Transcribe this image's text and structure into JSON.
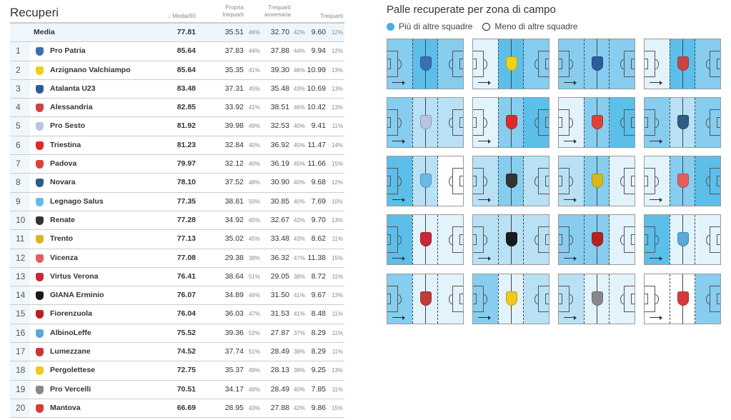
{
  "table": {
    "title": "Recuperi",
    "headers": {
      "media90": "↓ Media/90",
      "propria": "Propria trequarti",
      "avversaria": "Trequarti avversaria",
      "trequarti": "Trequarti"
    },
    "media_row": {
      "name": "Media",
      "media90": "77.81",
      "propria": "35.51",
      "propria_pct": "46%",
      "avversaria": "32.70",
      "avversaria_pct": "42%",
      "trequarti": "9.60",
      "trequarti_pct": "12%"
    },
    "rows": [
      {
        "rank": "1",
        "name": "Pro Patria",
        "media90": "85.64",
        "propria": "37.83",
        "propria_pct": "44%",
        "avversaria": "37.88",
        "avversaria_pct": "44%",
        "trequarti": "9.94",
        "trequarti_pct": "12%",
        "logo_color": "#3a6fb5"
      },
      {
        "rank": "2",
        "name": "Arzignano Valchiampo",
        "media90": "85.64",
        "propria": "35.35",
        "propria_pct": "41%",
        "avversaria": "39.30",
        "avversaria_pct": "46%",
        "trequarti": "10.99",
        "trequarti_pct": "13%",
        "logo_color": "#e8d21c"
      },
      {
        "rank": "3",
        "name": "Atalanta U23",
        "media90": "83.48",
        "propria": "37.31",
        "propria_pct": "45%",
        "avversaria": "35.48",
        "avversaria_pct": "43%",
        "trequarti": "10.69",
        "trequarti_pct": "13%",
        "logo_color": "#2a5d9c"
      },
      {
        "rank": "4",
        "name": "Alessandria",
        "media90": "82.85",
        "propria": "33.92",
        "propria_pct": "41%",
        "avversaria": "38.51",
        "avversaria_pct": "46%",
        "trequarti": "10.42",
        "trequarti_pct": "13%",
        "logo_color": "#c94545"
      },
      {
        "rank": "5",
        "name": "Pro Sesto",
        "media90": "81.92",
        "propria": "39.98",
        "propria_pct": "49%",
        "avversaria": "32.53",
        "avversaria_pct": "40%",
        "trequarti": "9.41",
        "trequarti_pct": "11%",
        "logo_color": "#b8c4e0"
      },
      {
        "rank": "6",
        "name": "Triestina",
        "media90": "81.23",
        "propria": "32.84",
        "propria_pct": "40%",
        "avversaria": "36.92",
        "avversaria_pct": "45%",
        "trequarti": "11.47",
        "trequarti_pct": "14%",
        "logo_color": "#e02a2a"
      },
      {
        "rank": "7",
        "name": "Padova",
        "media90": "79.97",
        "propria": "32.12",
        "propria_pct": "40%",
        "avversaria": "36.19",
        "avversaria_pct": "45%",
        "trequarti": "11.66",
        "trequarti_pct": "15%",
        "logo_color": "#e0403c"
      },
      {
        "rank": "8",
        "name": "Novara",
        "media90": "78.10",
        "propria": "37.52",
        "propria_pct": "48%",
        "avversaria": "30.90",
        "avversaria_pct": "40%",
        "trequarti": "9.68",
        "trequarti_pct": "12%",
        "logo_color": "#2f5c82"
      },
      {
        "rank": "9",
        "name": "Legnago Salus",
        "media90": "77.35",
        "propria": "38.81",
        "propria_pct": "50%",
        "avversaria": "30.85",
        "avversaria_pct": "40%",
        "trequarti": "7.69",
        "trequarti_pct": "10%",
        "logo_color": "#6ab8e8"
      },
      {
        "rank": "10",
        "name": "Renate",
        "media90": "77.28",
        "propria": "34.92",
        "propria_pct": "45%",
        "avversaria": "32.67",
        "avversaria_pct": "42%",
        "trequarti": "9.70",
        "trequarti_pct": "13%",
        "logo_color": "#333333"
      },
      {
        "rank": "11",
        "name": "Trento",
        "media90": "77.13",
        "propria": "35.02",
        "propria_pct": "45%",
        "avversaria": "33.48",
        "avversaria_pct": "43%",
        "trequarti": "8.62",
        "trequarti_pct": "11%",
        "logo_color": "#d8b81a"
      },
      {
        "rank": "12",
        "name": "Vicenza",
        "media90": "77.08",
        "propria": "29.38",
        "propria_pct": "38%",
        "avversaria": "36.32",
        "avversaria_pct": "47%",
        "trequarti": "11.38",
        "trequarti_pct": "15%",
        "logo_color": "#e06060"
      },
      {
        "rank": "13",
        "name": "Virtus Verona",
        "media90": "76.41",
        "propria": "38.64",
        "propria_pct": "51%",
        "avversaria": "29.05",
        "avversaria_pct": "38%",
        "trequarti": "8.72",
        "trequarti_pct": "11%",
        "logo_color": "#c8283a"
      },
      {
        "rank": "14",
        "name": "GIANA Erminio",
        "media90": "76.07",
        "propria": "34.89",
        "propria_pct": "46%",
        "avversaria": "31.50",
        "avversaria_pct": "41%",
        "trequarti": "9.67",
        "trequarti_pct": "13%",
        "logo_color": "#1a1a1a"
      },
      {
        "rank": "15",
        "name": "Fiorenzuola",
        "media90": "76.04",
        "propria": "36.03",
        "propria_pct": "47%",
        "avversaria": "31.53",
        "avversaria_pct": "41%",
        "trequarti": "8.48",
        "trequarti_pct": "11%",
        "logo_color": "#b82020"
      },
      {
        "rank": "16",
        "name": "AlbinoLeffe",
        "media90": "75.52",
        "propria": "39.36",
        "propria_pct": "52%",
        "avversaria": "27.87",
        "avversaria_pct": "37%",
        "trequarti": "8.29",
        "trequarti_pct": "11%",
        "logo_color": "#5aa8dc"
      },
      {
        "rank": "17",
        "name": "Lumezzane",
        "media90": "74.52",
        "propria": "37.74",
        "propria_pct": "51%",
        "avversaria": "28.49",
        "avversaria_pct": "38%",
        "trequarti": "8.29",
        "trequarti_pct": "11%",
        "logo_color": "#c23a3a"
      },
      {
        "rank": "18",
        "name": "Pergolettese",
        "media90": "72.75",
        "propria": "35.37",
        "propria_pct": "49%",
        "avversaria": "28.13",
        "avversaria_pct": "39%",
        "trequarti": "9.25",
        "trequarti_pct": "13%",
        "logo_color": "#f0c820"
      },
      {
        "rank": "19",
        "name": "Pro Vercelli",
        "media90": "70.51",
        "propria": "34.17",
        "propria_pct": "48%",
        "avversaria": "28.49",
        "avversaria_pct": "40%",
        "trequarti": "7.85",
        "trequarti_pct": "11%",
        "logo_color": "#888888"
      },
      {
        "rank": "20",
        "name": "Mantova",
        "media90": "66.69",
        "propria": "28.95",
        "propria_pct": "43%",
        "avversaria": "27.88",
        "avversaria_pct": "42%",
        "trequarti": "9.86",
        "trequarti_pct": "15%",
        "logo_color": "#d83a3a"
      }
    ]
  },
  "pitches": {
    "title": "Palle recuperate per zona di campo",
    "legend": [
      {
        "label": "Più di altre squadre",
        "color": "#4aaee0"
      },
      {
        "label": "Meno di altre squadre",
        "color": "#ffffff"
      }
    ],
    "shade_colors": [
      "#ffffff",
      "#e3f3fb",
      "#b8e1f5",
      "#86cdef",
      "#5bbfe9"
    ],
    "zone_levels": [
      [
        3,
        4,
        3
      ],
      [
        1,
        4,
        3
      ],
      [
        3,
        3,
        3
      ],
      [
        1,
        4,
        3
      ],
      [
        3,
        2,
        2
      ],
      [
        1,
        3,
        4
      ],
      [
        1,
        3,
        4
      ],
      [
        3,
        2,
        3
      ],
      [
        4,
        2,
        0
      ],
      [
        2,
        3,
        2
      ],
      [
        2,
        3,
        1
      ],
      [
        1,
        3,
        4
      ],
      [
        4,
        1,
        1
      ],
      [
        2,
        2,
        2
      ],
      [
        3,
        3,
        1
      ],
      [
        4,
        1,
        1
      ],
      [
        3,
        1,
        1
      ],
      [
        3,
        1,
        2
      ],
      [
        2,
        1,
        1
      ],
      [
        0,
        0,
        3
      ]
    ]
  }
}
